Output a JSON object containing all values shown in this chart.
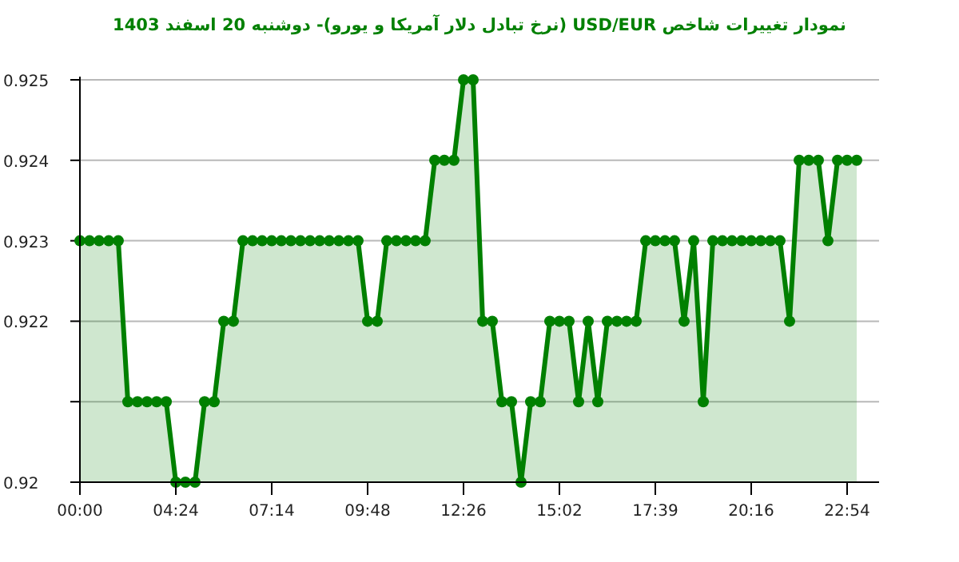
{
  "chart_data": {
    "type": "area",
    "title": "نمودار تغییرات شاخص USD/EUR (نرخ تبادل دلار آمریکا و یورو)-  دوشنبه  20 اسفند 1403",
    "categories": [
      "00:00",
      null,
      null,
      null,
      null,
      null,
      null,
      null,
      null,
      null,
      "04:24",
      null,
      null,
      null,
      null,
      null,
      null,
      null,
      null,
      null,
      "07:14",
      null,
      null,
      null,
      null,
      null,
      null,
      null,
      null,
      null,
      "09:48",
      null,
      null,
      null,
      null,
      null,
      null,
      null,
      null,
      null,
      "12:26",
      null,
      null,
      null,
      null,
      null,
      null,
      null,
      null,
      null,
      "15:02",
      null,
      null,
      null,
      null,
      null,
      null,
      null,
      null,
      null,
      "17:39",
      null,
      null,
      null,
      null,
      null,
      null,
      null,
      null,
      null,
      "20:16",
      null,
      null,
      null,
      null,
      null,
      null,
      null,
      null,
      null,
      "22:54",
      null
    ],
    "series": [
      {
        "color": "#008000",
        "values": [
          0.923,
          0.923,
          0.923,
          0.923,
          0.923,
          0.921,
          0.921,
          0.921,
          0.921,
          0.921,
          0.92,
          0.92,
          0.92,
          0.921,
          0.921,
          0.922,
          0.922,
          0.923,
          0.923,
          0.923,
          0.923,
          0.923,
          0.923,
          0.923,
          0.923,
          0.923,
          0.923,
          0.923,
          0.923,
          0.923,
          0.922,
          0.922,
          0.923,
          0.923,
          0.923,
          0.923,
          0.923,
          0.924,
          0.924,
          0.924,
          0.925,
          0.925,
          0.922,
          0.922,
          0.921,
          0.921,
          0.92,
          0.921,
          0.921,
          0.922,
          0.922,
          0.922,
          0.921,
          0.922,
          0.921,
          0.922,
          0.922,
          0.922,
          0.922,
          0.923,
          0.923,
          0.923,
          0.923,
          0.922,
          0.923,
          0.921,
          0.923,
          0.923,
          0.923,
          0.923,
          0.923,
          0.923,
          0.923,
          0.923,
          0.922,
          0.924,
          0.924,
          0.924,
          0.923,
          0.924,
          0.924,
          0.924
        ]
      }
    ],
    "ylim": [
      0.92,
      0.925
    ],
    "yticks": [
      0.92,
      {
        "value": 0.921,
        "label": null
      },
      0.922,
      0.923,
      0.924,
      0.925
    ],
    "grid": "y",
    "marker": "circle",
    "line_style": "solid"
  }
}
